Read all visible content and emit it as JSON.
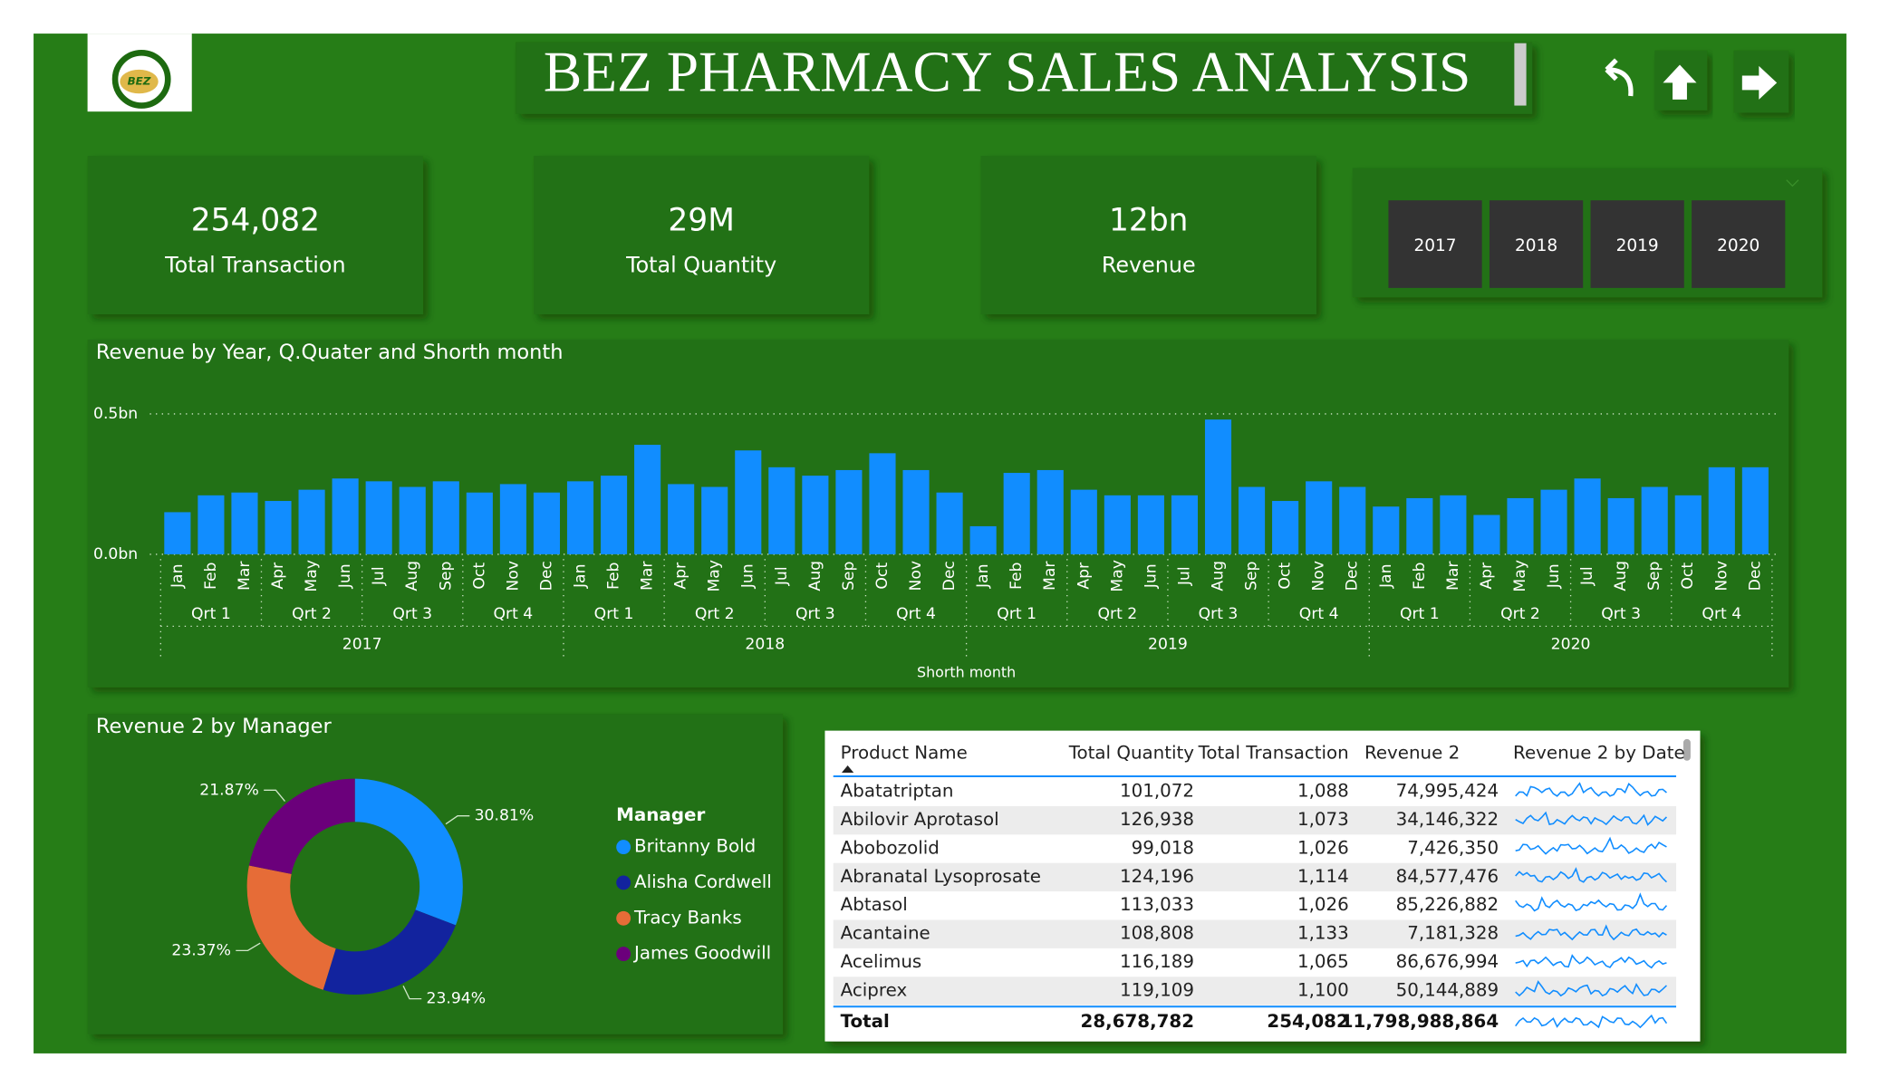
{
  "header": {
    "title": "BEZ PHARMACY SALES ANALYSIS",
    "logo": "BEZ"
  },
  "kpis": [
    {
      "value": "254,082",
      "label": "Total Transaction"
    },
    {
      "value": "29M",
      "label": "Total Quantity"
    },
    {
      "value": "12bn",
      "label": "Revenue"
    }
  ],
  "slicer": [
    "2017",
    "2018",
    "2019",
    "2020"
  ],
  "chart_data": [
    {
      "type": "bar",
      "title": "Revenue by Year, Q.Quater and Shorth month",
      "x_label": "Shorth month",
      "color": "#118dff",
      "categories": [
        "Jan",
        "Feb",
        "Mar",
        "Apr",
        "May",
        "Jun",
        "Jul",
        "Aug",
        "Sep",
        "Oct",
        "Nov",
        "Dec",
        "Jan",
        "Feb",
        "Mar",
        "Apr",
        "May",
        "Jun",
        "Jul",
        "Aug",
        "Sep",
        "Oct",
        "Nov",
        "Dec",
        "Jan",
        "Feb",
        "Mar",
        "Apr",
        "May",
        "Jun",
        "Jul",
        "Aug",
        "Sep",
        "Oct",
        "Nov",
        "Dec",
        "Jan",
        "Feb",
        "Mar",
        "Apr",
        "May",
        "Jun",
        "Jul",
        "Aug",
        "Sep",
        "Oct",
        "Nov",
        "Dec"
      ],
      "quarters": [
        "Qrt 1",
        "Qrt 2",
        "Qrt 3",
        "Qrt 4"
      ],
      "years": [
        "2017",
        "2018",
        "2019",
        "2020"
      ],
      "values": [
        0.15,
        0.21,
        0.22,
        0.19,
        0.23,
        0.27,
        0.26,
        0.24,
        0.26,
        0.22,
        0.25,
        0.22,
        0.26,
        0.28,
        0.39,
        0.25,
        0.24,
        0.37,
        0.31,
        0.28,
        0.3,
        0.36,
        0.3,
        0.22,
        0.1,
        0.29,
        0.3,
        0.23,
        0.21,
        0.21,
        0.21,
        0.48,
        0.24,
        0.19,
        0.26,
        0.24,
        0.17,
        0.2,
        0.21,
        0.14,
        0.2,
        0.23,
        0.27,
        0.2,
        0.24,
        0.21,
        0.31,
        0.31
      ],
      "ylim": [
        0,
        0.5
      ],
      "yticks": [
        {
          "value": 0,
          "label": "0.0bn"
        },
        {
          "value": 0.5,
          "label": "0.5bn"
        }
      ],
      "grid": true
    },
    {
      "type": "pie",
      "title": "Revenue 2 by Manager",
      "legend_title": "Manager",
      "categories": [
        "Britanny Bold",
        "Alisha Cordwell",
        "Tracy Banks",
        "James Goodwill"
      ],
      "colors": [
        "#118dff",
        "#12239e",
        "#e66c37",
        "#6b007b"
      ],
      "values": [
        30.81,
        23.94,
        23.37,
        21.87
      ],
      "value_labels": [
        "30.81%",
        "23.94%",
        "23.37%",
        "21.87%"
      ]
    }
  ],
  "table": {
    "columns": [
      "Product Name",
      "Total Quantity",
      "Total Transaction",
      "Revenue 2",
      "Revenue 2 by Date"
    ],
    "rows": [
      [
        "Abatatriptan",
        "101,072",
        "1,088",
        "74,995,424"
      ],
      [
        "Abilovir Aprotasol",
        "126,938",
        "1,073",
        "34,146,322"
      ],
      [
        "Abobozolid",
        "99,018",
        "1,026",
        "7,426,350"
      ],
      [
        "Abranatal Lysoprosate",
        "124,196",
        "1,114",
        "84,577,476"
      ],
      [
        "Abtasol",
        "113,033",
        "1,026",
        "85,226,882"
      ],
      [
        "Acantaine",
        "108,808",
        "1,133",
        "7,181,328"
      ],
      [
        "Acelimus",
        "116,189",
        "1,065",
        "86,676,994"
      ],
      [
        "Aciprex",
        "119,109",
        "1,100",
        "50,144,889"
      ]
    ],
    "total": [
      "Total",
      "28,678,782",
      "254,082",
      "11,798,988,864"
    ]
  }
}
